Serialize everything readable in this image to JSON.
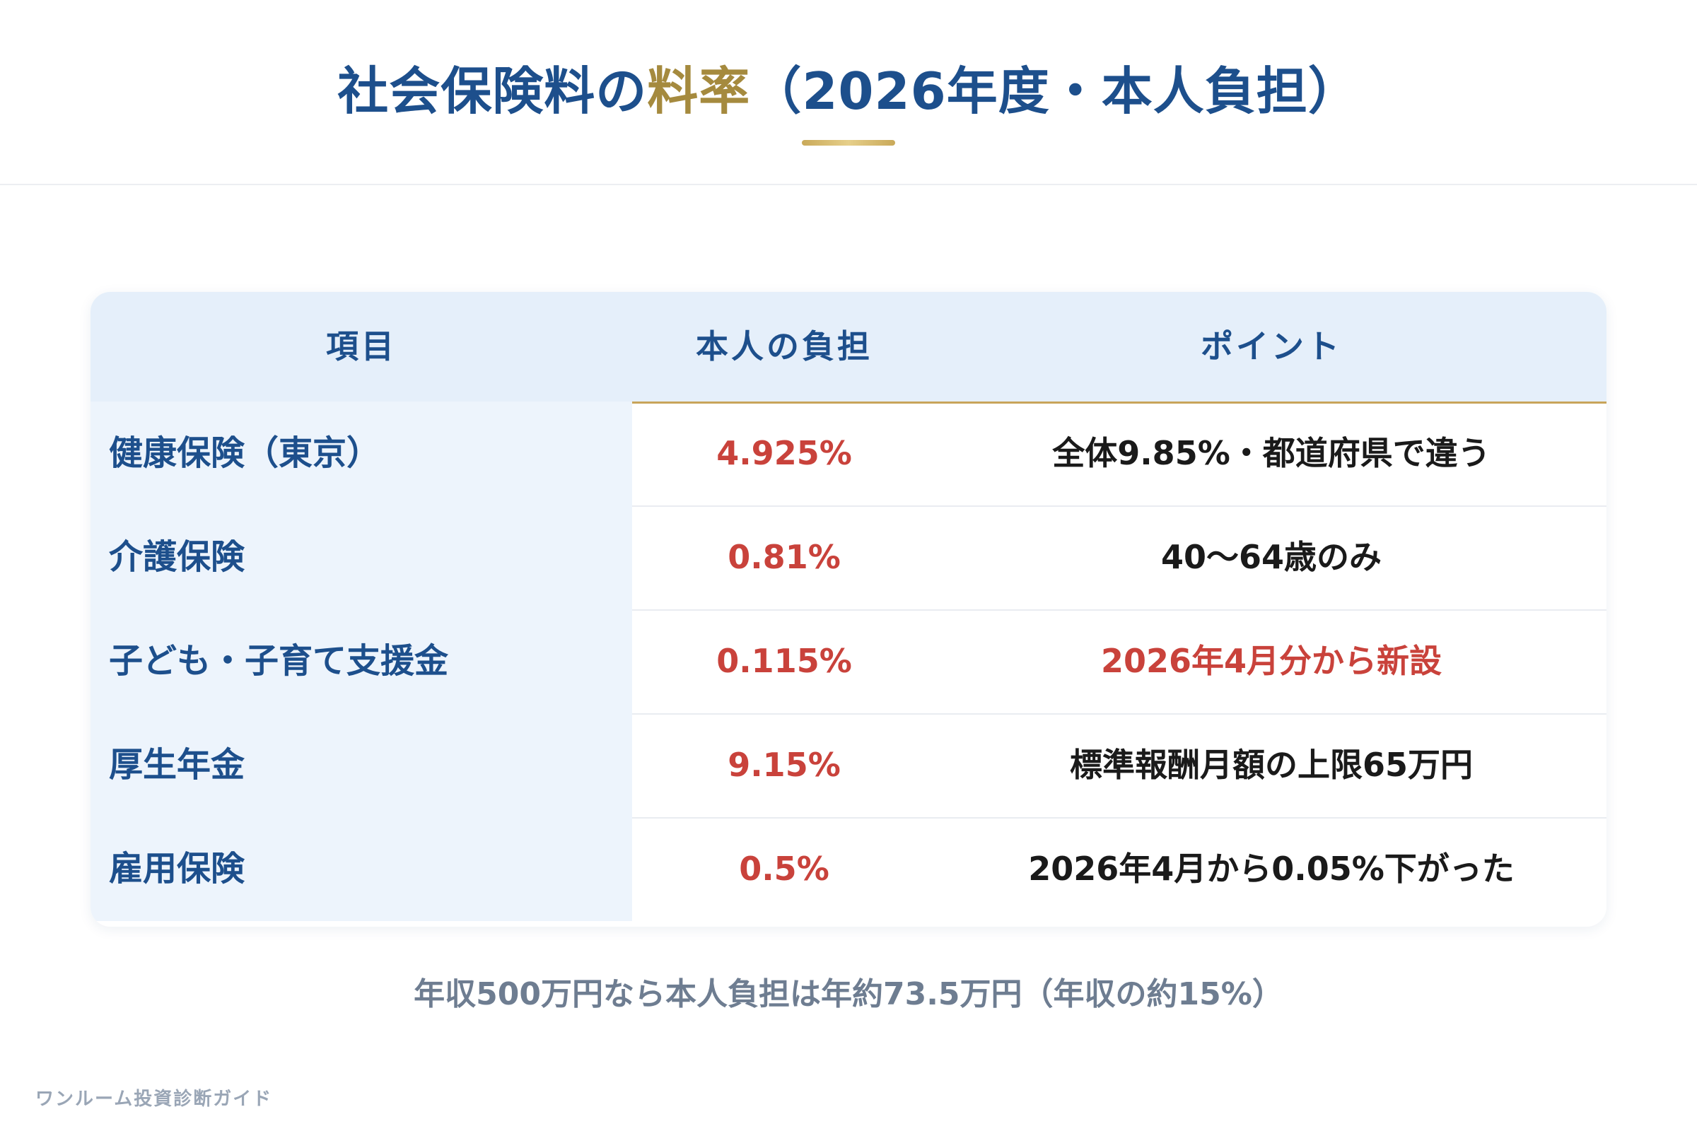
{
  "header": {
    "title_part1": "社会保険料の",
    "title_accent": "料率",
    "title_part2": "（2026年度・本人負担）"
  },
  "table": {
    "columns": [
      "項目",
      "本人の負担",
      "ポイント"
    ],
    "rows": [
      {
        "item": "健康保険（東京）",
        "rate": "4.925%",
        "point": "全体9.85%・都道府県で違う",
        "highlight": false
      },
      {
        "item": "介護保険",
        "rate": "0.81%",
        "point": "40〜64歳のみ",
        "highlight": false
      },
      {
        "item": "子ども・子育て支援金",
        "rate": "0.115%",
        "point": "2026年4月分から新設",
        "highlight": true
      },
      {
        "item": "厚生年金",
        "rate": "9.15%",
        "point": "標準報酬月額の上限65万円",
        "highlight": false
      },
      {
        "item": "雇用保険",
        "rate": "0.5%",
        "point": "2026年4月から0.05%下がった",
        "highlight": false
      }
    ]
  },
  "summary": "年収500万円なら本人負担は年約73.5万円（年収の約15%）",
  "footer": "ワンルーム投資診断ガイド",
  "colors": {
    "navy": "#1d4f8c",
    "gold": "#a58a3e",
    "red": "#c9423b",
    "header_bg": "#e5effa",
    "item_bg": "#edf4fc"
  }
}
